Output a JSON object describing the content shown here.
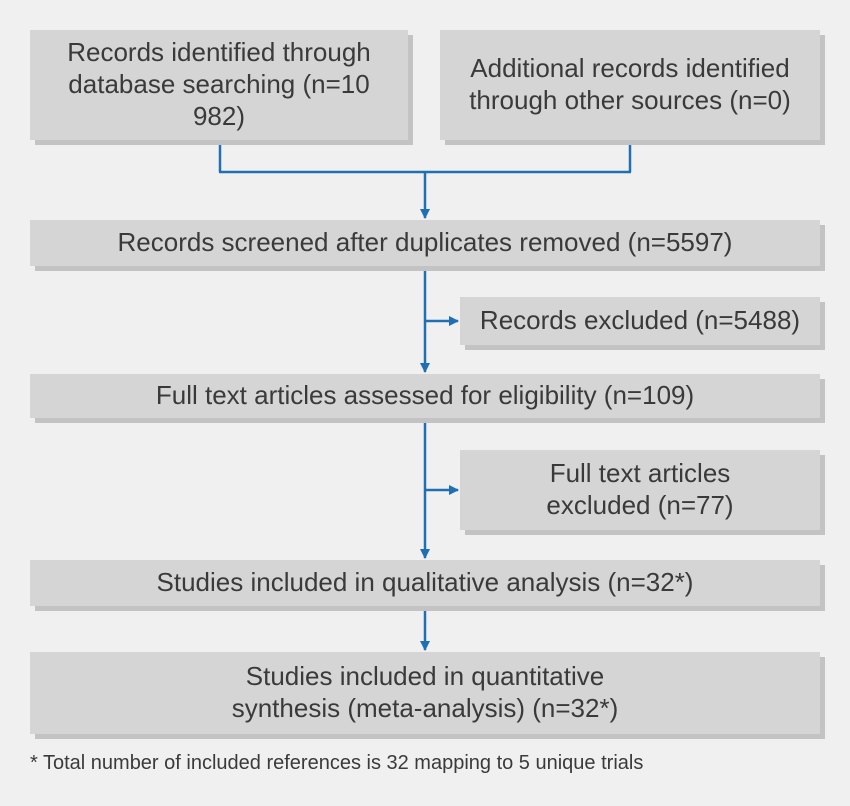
{
  "boxes": {
    "identified_db": "Records identified through database searching (n=10 982)",
    "identified_other": "Additional records identified through other sources (n=0)",
    "screened": "Records screened after duplicates removed (n=5597)",
    "excluded_records": "Records excluded (n=5488)",
    "fulltext_assessed": "Full text articles assessed for eligibility (n=109)",
    "fulltext_excluded": "Full text articles excluded (n=77)",
    "qualitative": "Studies included in qualitative analysis (n=32*)",
    "quantitative": "Studies included in quantitative synthesis (meta-analysis) (n=32*)"
  },
  "footnote": "* Total number of included references is 32 mapping to 5 unique trials",
  "colors": {
    "background": "#f0f0f0",
    "box_fill": "#d5d5d5",
    "box_shadow": "#c3c3c3",
    "arrow": "#1f6fb2",
    "text": "#3a3a3a"
  }
}
